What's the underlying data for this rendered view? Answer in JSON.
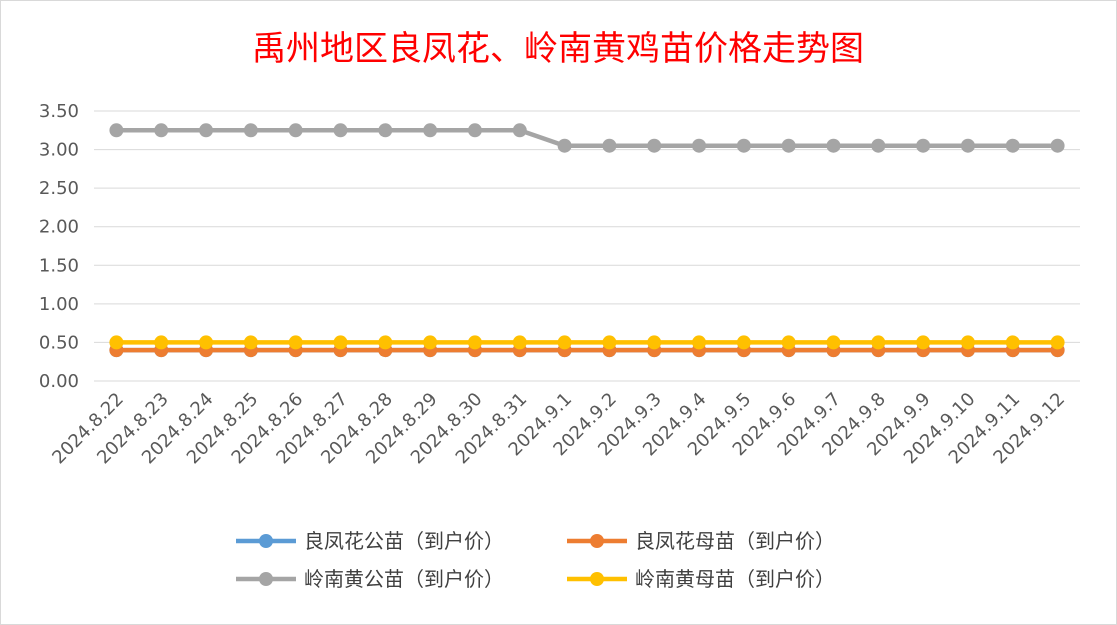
{
  "chart_data": {
    "type": "line",
    "title": "禹州地区良凤花、岭南黄鸡苗价格走势图",
    "xlabel": "",
    "ylabel": "",
    "ylim": [
      0,
      3.5
    ],
    "yticks": [
      "0.00",
      "0.50",
      "1.00",
      "1.50",
      "2.00",
      "2.50",
      "3.00",
      "3.50"
    ],
    "grid": true,
    "legend_position": "bottom",
    "categories": [
      "2024.8.22",
      "2024.8.23",
      "2024.8.24",
      "2024.8.25",
      "2024.8.26",
      "2024.8.27",
      "2024.8.28",
      "2024.8.29",
      "2024.8.30",
      "2024.8.31",
      "2024.9.1",
      "2024.9.2",
      "2024.9.3",
      "2024.9.4",
      "2024.9.5",
      "2024.9.6",
      "2024.9.7",
      "2024.9.8",
      "2024.9.9",
      "2024.9.10",
      "2024.9.11",
      "2024.9.12"
    ],
    "series": [
      {
        "name": "良凤花公苗（到户价）",
        "color": "#5b9bd5",
        "values": [
          0.4,
          0.4,
          0.4,
          0.4,
          0.4,
          0.4,
          0.4,
          0.4,
          0.4,
          0.4,
          0.4,
          0.4,
          0.4,
          0.4,
          0.4,
          0.4,
          0.4,
          0.4,
          0.4,
          0.4,
          0.4,
          0.4
        ]
      },
      {
        "name": "良凤花母苗（到户价）",
        "color": "#ed7d31",
        "values": [
          0.4,
          0.4,
          0.4,
          0.4,
          0.4,
          0.4,
          0.4,
          0.4,
          0.4,
          0.4,
          0.4,
          0.4,
          0.4,
          0.4,
          0.4,
          0.4,
          0.4,
          0.4,
          0.4,
          0.4,
          0.4,
          0.4
        ]
      },
      {
        "name": "岭南黄公苗（到户价）",
        "color": "#a5a5a5",
        "values": [
          3.25,
          3.25,
          3.25,
          3.25,
          3.25,
          3.25,
          3.25,
          3.25,
          3.25,
          3.25,
          3.05,
          3.05,
          3.05,
          3.05,
          3.05,
          3.05,
          3.05,
          3.05,
          3.05,
          3.05,
          3.05,
          3.05
        ]
      },
      {
        "name": "岭南黄母苗（到户价）",
        "color": "#ffc000",
        "values": [
          0.5,
          0.5,
          0.5,
          0.5,
          0.5,
          0.5,
          0.5,
          0.5,
          0.5,
          0.5,
          0.5,
          0.5,
          0.5,
          0.5,
          0.5,
          0.5,
          0.5,
          0.5,
          0.5,
          0.5,
          0.5,
          0.5
        ]
      }
    ]
  }
}
